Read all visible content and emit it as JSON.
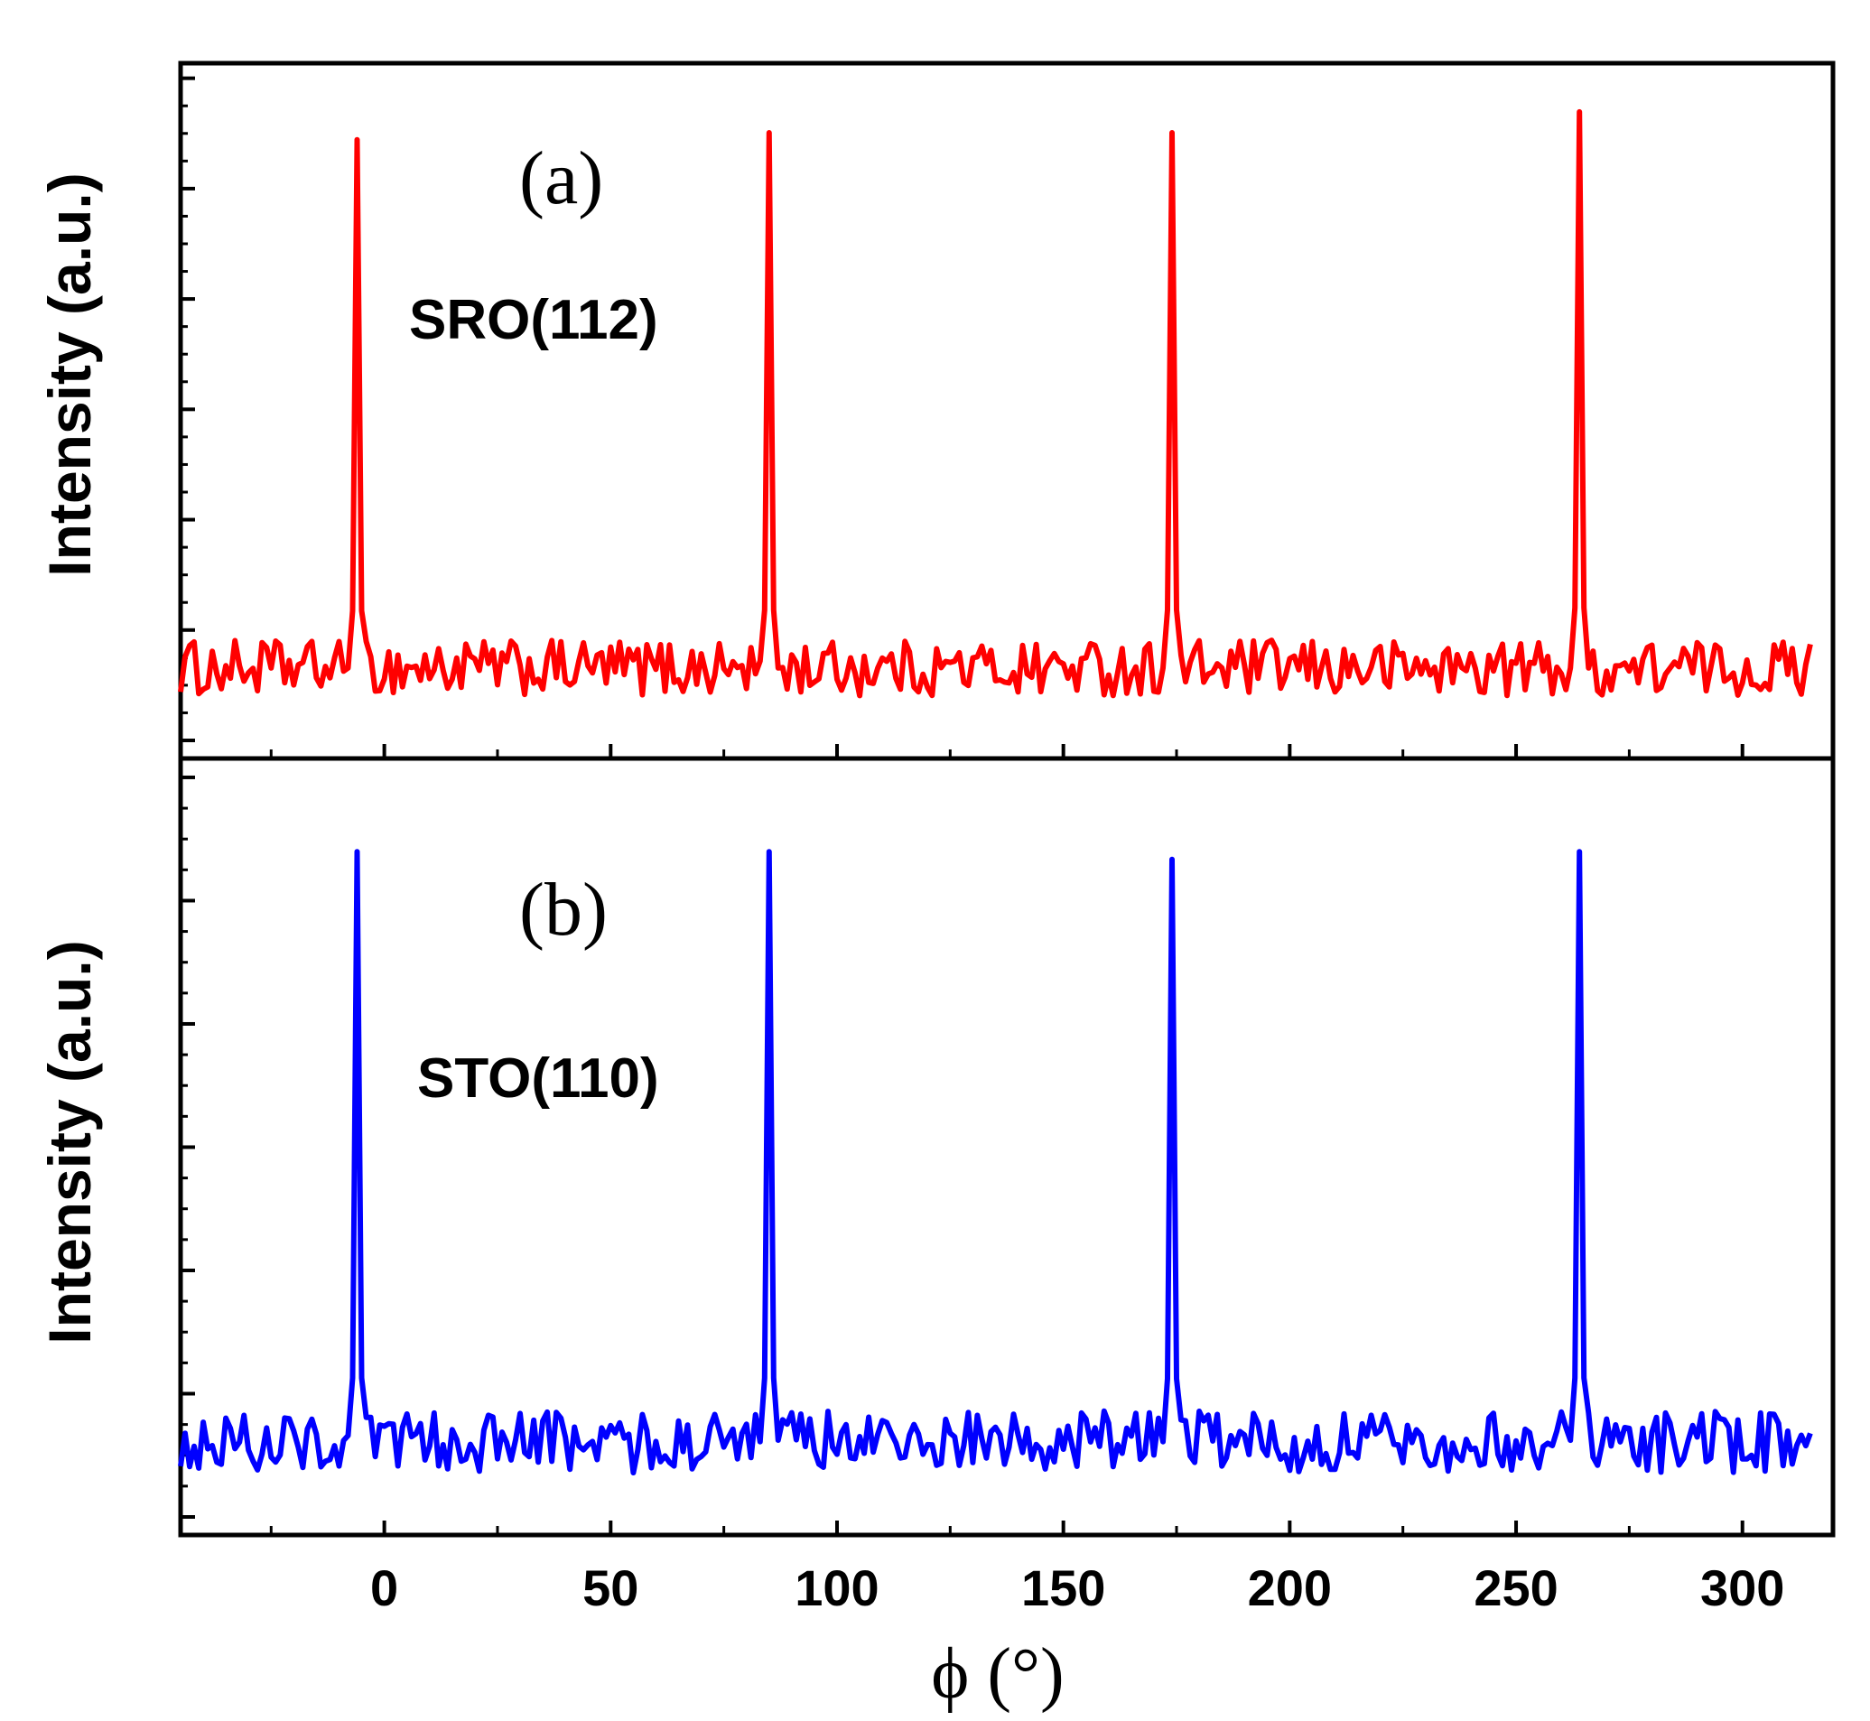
{
  "chart_data": [
    {
      "type": "line",
      "panel": "top",
      "panel_tag": "(a)",
      "annotation": "SRO(112)",
      "ylabel": "Intensity (a.u.)",
      "xlabel": "ϕ (°)",
      "xlim": [
        -45,
        320
      ],
      "ylim": [
        0,
        100
      ],
      "color": "#ff0000",
      "baseline": 13,
      "noise": 4,
      "peaks": [
        {
          "x": -6,
          "y": 89
        },
        {
          "x": 85,
          "y": 90
        },
        {
          "x": 174,
          "y": 90
        },
        {
          "x": 264,
          "y": 93
        }
      ],
      "x_range": [
        -45,
        315
      ]
    },
    {
      "type": "line",
      "panel": "bottom",
      "panel_tag": "(b)",
      "annotation": "STO(110)",
      "ylabel": "Intensity (a.u.)",
      "xlabel": "ϕ (°)",
      "xlim": [
        -45,
        320
      ],
      "ylim": [
        0,
        100
      ],
      "color": "#0000ff",
      "baseline": 12,
      "noise": 4,
      "peaks": [
        {
          "x": -6,
          "y": 88
        },
        {
          "x": 85,
          "y": 88
        },
        {
          "x": 174,
          "y": 87
        },
        {
          "x": 264,
          "y": 88
        }
      ],
      "x_range": [
        -45,
        315
      ]
    }
  ],
  "x_ticks": [
    "0",
    "50",
    "100",
    "150",
    "200",
    "250",
    "300"
  ],
  "x_tick_values": [
    0,
    50,
    100,
    150,
    200,
    250,
    300
  ]
}
